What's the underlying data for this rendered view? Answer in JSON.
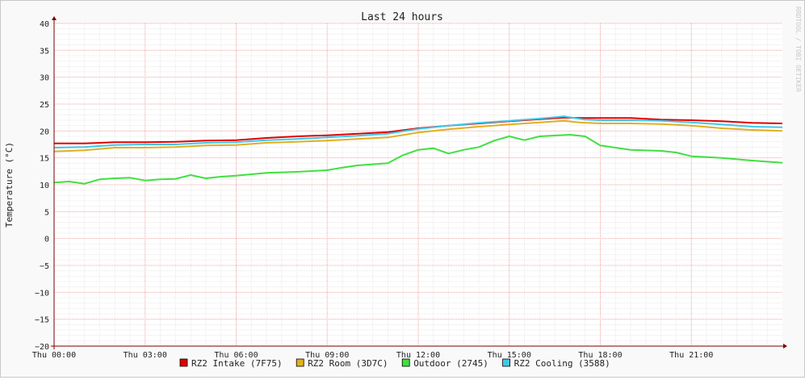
{
  "chart_data": {
    "type": "line",
    "title": "Last 24 hours",
    "ylabel": "Temperature (°C)",
    "xlabel": "",
    "watermark": "RRDTOOL / TOBI OETIKER",
    "ylim": [
      -20,
      40
    ],
    "xlim_hours": [
      0,
      24
    ],
    "y_ticks": [
      40,
      35,
      30,
      25,
      20,
      15,
      10,
      5,
      0,
      -5,
      -10,
      -15,
      -20
    ],
    "x_ticks": [
      {
        "h": 0,
        "label": "Thu 00:00"
      },
      {
        "h": 3,
        "label": "Thu 03:00"
      },
      {
        "h": 6,
        "label": "Thu 06:00"
      },
      {
        "h": 9,
        "label": "Thu 09:00"
      },
      {
        "h": 12,
        "label": "Thu 12:00"
      },
      {
        "h": 15,
        "label": "Thu 15:00"
      },
      {
        "h": 18,
        "label": "Thu 18:00"
      },
      {
        "h": 21,
        "label": "Thu 21:00"
      }
    ],
    "colors": {
      "background": "#f9f9f9",
      "canvas": "#ffffff",
      "grid_minor": "#e8e8e8",
      "grid_major": "#f0a0a0",
      "axis": "#7a0000",
      "font": "#222222"
    },
    "series": [
      {
        "name": "RZ2 Intake (7F75)",
        "color": "#e00000",
        "points": [
          [
            0,
            17.7
          ],
          [
            1,
            17.7
          ],
          [
            2,
            17.9
          ],
          [
            3,
            17.9
          ],
          [
            4,
            18.0
          ],
          [
            5,
            18.2
          ],
          [
            6,
            18.3
          ],
          [
            7,
            18.7
          ],
          [
            8,
            19.0
          ],
          [
            9,
            19.2
          ],
          [
            10,
            19.5
          ],
          [
            11,
            19.8
          ],
          [
            12,
            20.5
          ],
          [
            13,
            21.0
          ],
          [
            14,
            21.4
          ],
          [
            15,
            21.8
          ],
          [
            16,
            22.2
          ],
          [
            16.8,
            22.5
          ],
          [
            17.5,
            22.4
          ],
          [
            18,
            22.4
          ],
          [
            19,
            22.4
          ],
          [
            20,
            22.1
          ],
          [
            21,
            22.0
          ],
          [
            22,
            21.8
          ],
          [
            23,
            21.5
          ],
          [
            24,
            21.4
          ]
        ]
      },
      {
        "name": "RZ2 Room (3D7C)",
        "color": "#e0b020",
        "points": [
          [
            0,
            16.2
          ],
          [
            1,
            16.4
          ],
          [
            2,
            16.9
          ],
          [
            3,
            16.9
          ],
          [
            4,
            17.0
          ],
          [
            5,
            17.3
          ],
          [
            6,
            17.4
          ],
          [
            7,
            17.8
          ],
          [
            8,
            18.0
          ],
          [
            9,
            18.2
          ],
          [
            10,
            18.5
          ],
          [
            11,
            18.8
          ],
          [
            12,
            19.7
          ],
          [
            13,
            20.3
          ],
          [
            14,
            20.8
          ],
          [
            15,
            21.2
          ],
          [
            16,
            21.6
          ],
          [
            16.8,
            21.9
          ],
          [
            17.3,
            21.6
          ],
          [
            18,
            21.4
          ],
          [
            19,
            21.4
          ],
          [
            20,
            21.3
          ],
          [
            21,
            21.0
          ],
          [
            22,
            20.5
          ],
          [
            23,
            20.2
          ],
          [
            24,
            20.0
          ]
        ]
      },
      {
        "name": "Outdoor (2745)",
        "color": "#40e040",
        "points": [
          [
            0,
            10.4
          ],
          [
            0.5,
            10.6
          ],
          [
            1,
            10.2
          ],
          [
            1.5,
            11.0
          ],
          [
            2,
            11.2
          ],
          [
            2.5,
            11.3
          ],
          [
            3,
            10.8
          ],
          [
            3.5,
            11.0
          ],
          [
            4,
            11.1
          ],
          [
            4.5,
            11.8
          ],
          [
            5,
            11.2
          ],
          [
            5.5,
            11.5
          ],
          [
            6,
            11.7
          ],
          [
            7,
            12.2
          ],
          [
            8,
            12.4
          ],
          [
            9,
            12.7
          ],
          [
            9.5,
            13.2
          ],
          [
            10,
            13.6
          ],
          [
            11,
            14.0
          ],
          [
            11.5,
            15.5
          ],
          [
            12,
            16.5
          ],
          [
            12.5,
            16.8
          ],
          [
            13,
            15.8
          ],
          [
            13.5,
            16.5
          ],
          [
            14,
            17.0
          ],
          [
            14.5,
            18.2
          ],
          [
            15,
            19.0
          ],
          [
            15.5,
            18.3
          ],
          [
            16,
            19.0
          ],
          [
            17,
            19.3
          ],
          [
            17.5,
            19.0
          ],
          [
            18,
            17.3
          ],
          [
            19,
            16.5
          ],
          [
            20,
            16.3
          ],
          [
            20.5,
            16.0
          ],
          [
            21,
            15.3
          ],
          [
            22,
            15.0
          ],
          [
            23,
            14.5
          ],
          [
            24,
            14.1
          ]
        ]
      },
      {
        "name": "RZ2 Cooling (3588)",
        "color": "#40c8e8",
        "points": [
          [
            0,
            16.9
          ],
          [
            1,
            17.0
          ],
          [
            2,
            17.4
          ],
          [
            3,
            17.5
          ],
          [
            4,
            17.5
          ],
          [
            5,
            17.8
          ],
          [
            6,
            17.9
          ],
          [
            7,
            18.3
          ],
          [
            8,
            18.5
          ],
          [
            9,
            18.8
          ],
          [
            10,
            19.1
          ],
          [
            11,
            19.5
          ],
          [
            12,
            20.4
          ],
          [
            13,
            21.0
          ],
          [
            14,
            21.5
          ],
          [
            15,
            21.9
          ],
          [
            16,
            22.3
          ],
          [
            16.8,
            22.7
          ],
          [
            17.5,
            22.1
          ],
          [
            18,
            22.0
          ],
          [
            19,
            22.0
          ],
          [
            20,
            21.9
          ],
          [
            21,
            21.6
          ],
          [
            22,
            21.2
          ],
          [
            23,
            20.8
          ],
          [
            24,
            20.7
          ]
        ]
      }
    ]
  }
}
